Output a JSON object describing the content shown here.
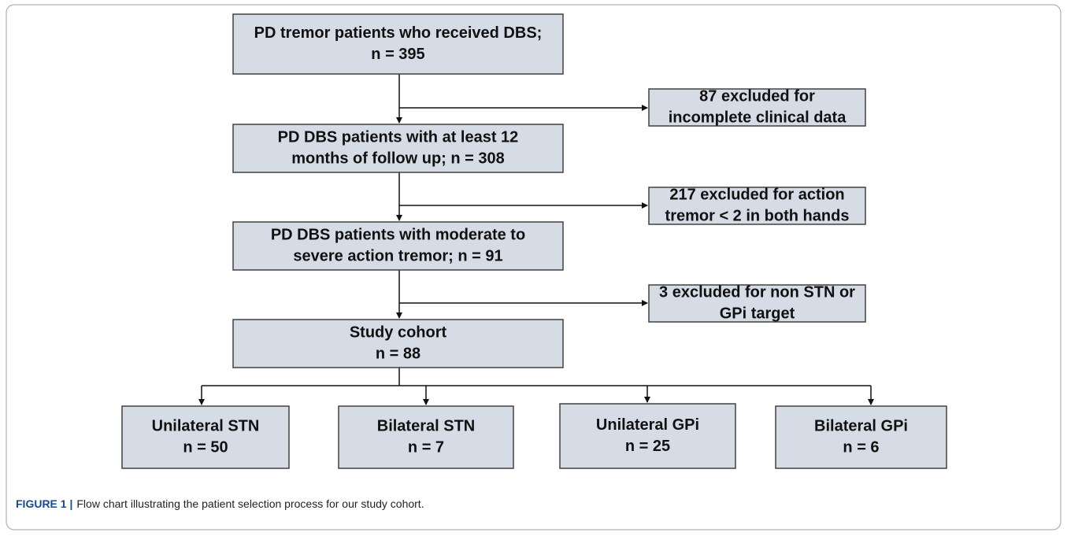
{
  "nodes": [
    {
      "lines": [
        "PD tremor patients who received DBS;",
        "n = 395"
      ]
    },
    {
      "lines": [
        "87 excluded for",
        "incomplete clinical data"
      ]
    },
    {
      "lines": [
        "PD DBS patients with at least 12",
        "months of follow up; n = 308"
      ]
    },
    {
      "lines": [
        "217 excluded for action",
        "tremor < 2 in both hands"
      ]
    },
    {
      "lines": [
        "PD DBS patients with moderate to",
        "severe action tremor; n = 91"
      ]
    },
    {
      "lines": [
        "3 excluded for non STN or",
        "GPi target"
      ]
    },
    {
      "lines": [
        "Study cohort",
        "n = 88"
      ]
    },
    {
      "lines": [
        "Unilateral STN",
        "n  = 50"
      ]
    },
    {
      "lines": [
        "Bilateral STN",
        "n  = 7"
      ]
    },
    {
      "lines": [
        "Unilateral GPi",
        "n  = 25"
      ]
    },
    {
      "lines": [
        "Bilateral GPi",
        "n  = 6"
      ]
    }
  ],
  "caption": {
    "label": "FIGURE 1 |",
    "text": "Flow chart illustrating the patient selection process for our study cohort."
  }
}
